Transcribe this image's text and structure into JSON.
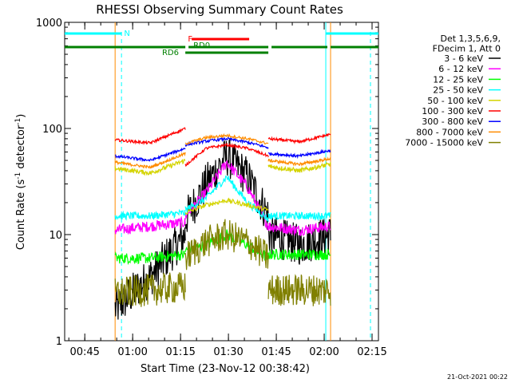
{
  "chart_data": {
    "type": "line",
    "title": "RHESSI Observing Summary Count Rates",
    "xlabel": "Start Time (23-Nov-12 00:38:42)",
    "ylabel_main": "Count Rate (s",
    "ylabel_sup1": "-1",
    "ylabel_mid": " detector",
    "ylabel_sup2": "-1",
    "ylabel_end": ")",
    "yscale": "log",
    "ylim": [
      1,
      1000
    ],
    "xlim_minutes": [
      38.7,
      137
    ],
    "x_ticks": [
      {
        "min": 45,
        "label": "00:45"
      },
      {
        "min": 60,
        "label": "01:00"
      },
      {
        "min": 75,
        "label": "01:15"
      },
      {
        "min": 90,
        "label": "01:30"
      },
      {
        "min": 105,
        "label": "01:45"
      },
      {
        "min": 120,
        "label": "02:00"
      },
      {
        "min": 135,
        "label": "02:15"
      }
    ],
    "y_ticks": [
      {
        "val": 1,
        "label": "1"
      },
      {
        "val": 10,
        "label": "10"
      },
      {
        "val": 100,
        "label": "100"
      },
      {
        "val": 1000,
        "label": "1000"
      }
    ],
    "timestamp": "21-Oct-2021 00:22",
    "legend_header": [
      "Det 1,3,5,6,9,",
      "FDecim 1, Att 0"
    ],
    "series": [
      {
        "name": "3 - 6 keV",
        "color": "#000000"
      },
      {
        "name": "6 - 12 keV",
        "color": "#ff00ff"
      },
      {
        "name": "12 - 25 keV",
        "color": "#00ff00"
      },
      {
        "name": "25 - 50 keV",
        "color": "#00ffff"
      },
      {
        "name": "50 - 100 keV",
        "color": "#d4d400"
      },
      {
        "name": "100 - 300 keV",
        "color": "#ff0000"
      },
      {
        "name": "300 - 800 keV",
        "color": "#0000ff"
      },
      {
        "name": "800 - 7000 keV",
        "color": "#ff8c00"
      },
      {
        "name": "7000 - 15000 keV",
        "color": "#808000"
      }
    ],
    "flag_bars": [
      {
        "label": "N",
        "color": "#00ffff",
        "ranges": [
          [
            38.7,
            56.5
          ],
          [
            120.5,
            137
          ]
        ]
      },
      {
        "label": "F",
        "color": "#ff0000",
        "ranges": [
          [
            78.5,
            96.5
          ]
        ]
      },
      {
        "label": "RD0",
        "color": "#008000",
        "ranges": [
          [
            38.7,
            76.5
          ],
          [
            77.5,
            102.5
          ],
          [
            103.5,
            121
          ],
          [
            122,
            137
          ]
        ]
      },
      {
        "label": "RD6",
        "color": "#008000",
        "ranges": [
          [
            76.5,
            102.5
          ]
        ]
      }
    ],
    "vlines_dashed": [
      {
        "min": 56.5,
        "color": "#00ffff"
      },
      {
        "min": 134.5,
        "color": "#00ffff"
      }
    ],
    "vlines_solid": [
      {
        "min": 120.5,
        "color": "#00ffff"
      },
      {
        "min": 54.5,
        "color": "#ff8c00"
      },
      {
        "min": 122,
        "color": "#ff8c00"
      }
    ],
    "orbit_segments": [
      [
        54.5,
        76.5
      ],
      [
        76.5,
        102.5
      ],
      [
        102.5,
        122
      ]
    ],
    "levels": {
      "100 - 300 keV": {
        "seg1": [
          78,
          73,
          100
        ],
        "seg2": [
          45,
          65,
          70,
          65,
          55
        ],
        "seg3": [
          80,
          75,
          88
        ]
      },
      "300 - 800 keV": {
        "seg1": [
          55,
          50,
          65
        ],
        "seg2": [
          70,
          76,
          80,
          74,
          66
        ],
        "seg3": [
          58,
          55,
          62
        ]
      },
      "800 - 7000 keV": {
        "seg1": [
          48,
          43,
          58
        ],
        "seg2": [
          72,
          82,
          86,
          80,
          72
        ],
        "seg3": [
          50,
          46,
          52
        ]
      },
      "50 - 100 keV": {
        "seg1": [
          42,
          38,
          50
        ],
        "seg2": [
          16,
          19,
          21,
          19,
          17
        ],
        "seg3": [
          44,
          40,
          46
        ]
      },
      "25 - 50 keV": {
        "seg1": [
          15,
          15,
          16
        ],
        "seg2": [
          17,
          22,
          35,
          20,
          14
        ],
        "seg3": [
          15,
          15,
          15
        ]
      },
      "6 - 12 keV": {
        "seg1": [
          11,
          12,
          13
        ],
        "seg2": [
          15,
          25,
          48,
          28,
          12
        ],
        "seg3": [
          12,
          11,
          12
        ]
      },
      "3 - 6 keV": {
        "seg1": [
          2,
          4,
          10
        ],
        "seg2": [
          14,
          30,
          55,
          35,
          15
        ],
        "seg3": [
          10,
          8,
          10
        ]
      },
      "12 - 25 keV": {
        "seg1": [
          6,
          6,
          6.5
        ],
        "seg2": [
          7,
          8,
          10,
          8,
          6
        ],
        "seg3": [
          6.5,
          6.5,
          6.5
        ]
      },
      "7000 - 15000 keV": {
        "seg1": [
          2.8,
          3,
          3.2
        ],
        "seg2": [
          6,
          8.5,
          10,
          8.5,
          6
        ],
        "seg3": [
          3,
          3,
          3
        ]
      }
    }
  }
}
